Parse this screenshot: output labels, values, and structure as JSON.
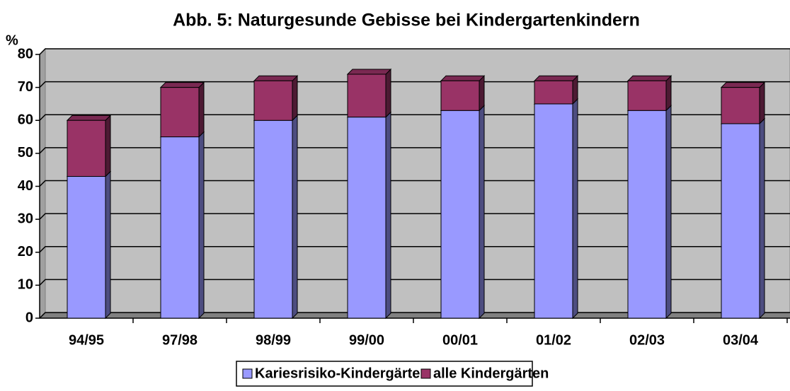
{
  "chart_data": {
    "type": "bar",
    "stacked": true,
    "title": "Abb. 5: Naturgesunde Gebisse bei Kindergartenkindern",
    "y_label": "%",
    "categories": [
      "94/95",
      "97/98",
      "98/99",
      "99/00",
      "00/01",
      "01/02",
      "02/03",
      "03/04"
    ],
    "series": [
      {
        "name": "Kariesrisiko-Kindergärten",
        "color": "#9999ff",
        "values": [
          43,
          55,
          60,
          61,
          63,
          65,
          63,
          59
        ]
      },
      {
        "name": "alle Kindergärten",
        "color": "#993366",
        "values": [
          17,
          15,
          12,
          13,
          9,
          7,
          9,
          11
        ]
      }
    ],
    "ylim": [
      0,
      80
    ],
    "yticks": [
      0,
      10,
      20,
      30,
      40,
      50,
      60,
      70,
      80
    ],
    "grid": true,
    "legend": "bottom"
  }
}
